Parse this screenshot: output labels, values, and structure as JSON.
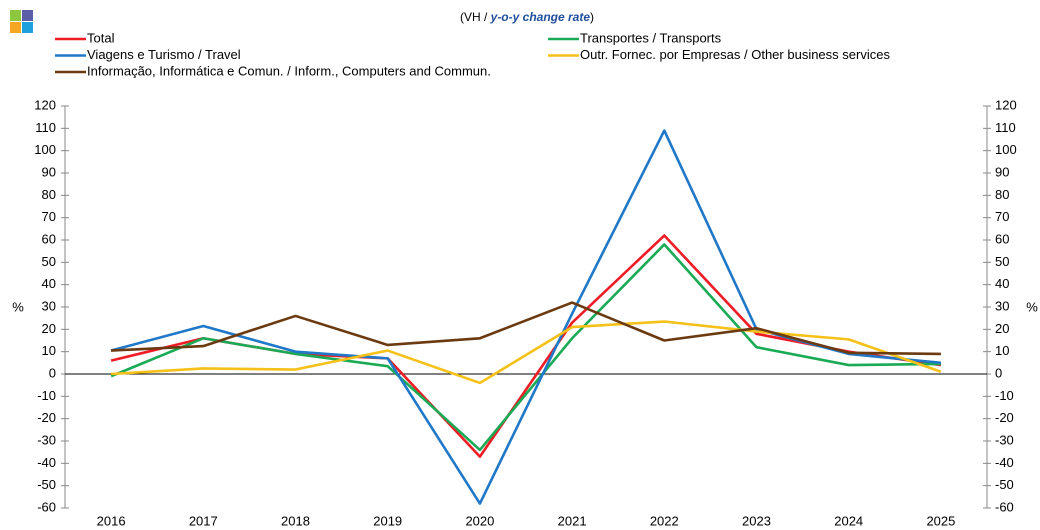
{
  "chart_data": {
    "type": "line",
    "subtitle_parts": [
      "(VH / ",
      "y-o-y change rate",
      ")"
    ],
    "ylabel": "%",
    "y2label": "%",
    "categories": [
      "2016",
      "2017",
      "2018",
      "2019",
      "2020",
      "2021",
      "2022",
      "2023",
      "2024",
      "2025"
    ],
    "series": [
      {
        "name": "Total",
        "color": "#ee1c25",
        "values": [
          6,
          16,
          9,
          7,
          -37,
          23,
          62,
          18,
          10,
          4
        ]
      },
      {
        "name": "Transportes / Transports",
        "color": "#1aaa55",
        "values": [
          -1,
          16,
          9,
          3.5,
          -34,
          16,
          58,
          12,
          4,
          4.5
        ]
      },
      {
        "name": "Viagens e Turismo / Travel",
        "color": "#1f78c8",
        "values": [
          10.5,
          21.5,
          10,
          7,
          -58,
          27,
          109,
          20,
          9,
          5
        ]
      },
      {
        "name": "Outr. Fornec. por Empresas / Other business services",
        "color": "#f5c118",
        "values": [
          0,
          2.5,
          2,
          10.5,
          -4,
          21,
          23.5,
          19,
          15.5,
          1
        ]
      },
      {
        "name": "Informação, Informática e Comun. / Inform., Computers and Commun.",
        "color": "#6b3a10",
        "values": [
          10.5,
          12.5,
          26,
          13,
          16,
          32,
          15,
          20.5,
          9.5,
          9
        ]
      }
    ],
    "ylim": [
      -60,
      120
    ],
    "yticks": [
      -60,
      -50,
      -40,
      -30,
      -20,
      -10,
      0,
      10,
      20,
      30,
      40,
      50,
      60,
      70,
      80,
      90,
      100,
      110,
      120
    ],
    "y2lim": [
      -60,
      120
    ],
    "y2ticks": [
      -60,
      -50,
      -40,
      -30,
      -20,
      -10,
      0,
      10,
      20,
      30,
      40,
      50,
      60,
      70,
      80,
      90,
      100,
      110,
      120
    ],
    "grid": false
  }
}
